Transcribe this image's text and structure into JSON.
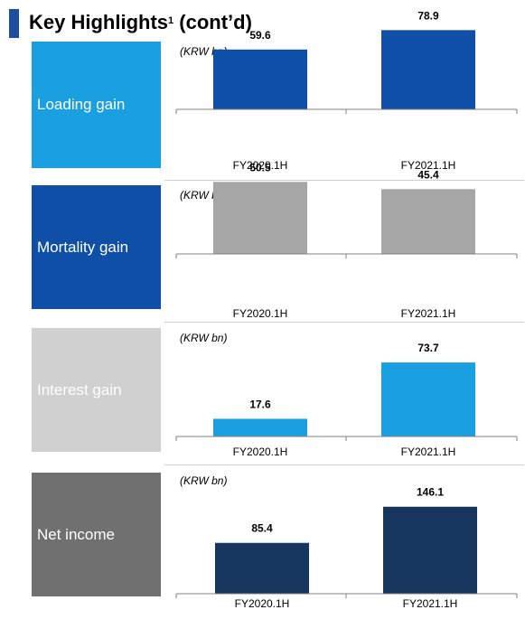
{
  "page": {
    "title": "Key Highlights",
    "title_sup": "1",
    "title_suffix": " (cont’d)"
  },
  "chart_data": [
    {
      "type": "bar",
      "label": "Loading gain",
      "label_bg": "#1a9fe0",
      "label_color": "#ffffff",
      "unit": "(KRW bn)",
      "categories": [
        "FY2020.1H",
        "FY2021.1H"
      ],
      "values": [
        59.6,
        78.9
      ],
      "value_labels": [
        "59.6",
        "78.9"
      ],
      "bar_color": "#0f4fa8",
      "ylim": [
        0,
        90
      ]
    },
    {
      "type": "bar",
      "label": "Mortality gain",
      "label_bg": "#0f4fa8",
      "label_color": "#ffffff",
      "unit": "(KRW bn)",
      "categories": [
        "FY2020.1H",
        "FY2021.1H"
      ],
      "values": [
        50.5,
        45.4
      ],
      "value_labels": [
        "50.5",
        "45.4"
      ],
      "bar_color": "#a6a6a6",
      "ylim": [
        0,
        57
      ]
    },
    {
      "type": "bar",
      "label": "Interest gain",
      "label_bg": "#d0d0d0",
      "label_color": "#ffffff",
      "unit": "(KRW bn)",
      "categories": [
        "FY2020.1H",
        "FY2021.1H"
      ],
      "values": [
        17.6,
        73.7
      ],
      "value_labels": [
        "17.6",
        "73.7"
      ],
      "bar_color": "#1a9fe0",
      "ylim": [
        0,
        90
      ]
    },
    {
      "type": "bar",
      "label": "Net income",
      "label_bg": "#707070",
      "label_color": "#ffffff",
      "unit": "(KRW bn)",
      "categories": [
        "FY2020.1H",
        "FY2021.1H"
      ],
      "values": [
        85.4,
        146.1
      ],
      "value_labels": [
        "85.4",
        "146.1"
      ],
      "bar_color": "#17365d",
      "ylim": [
        0,
        170
      ]
    }
  ]
}
